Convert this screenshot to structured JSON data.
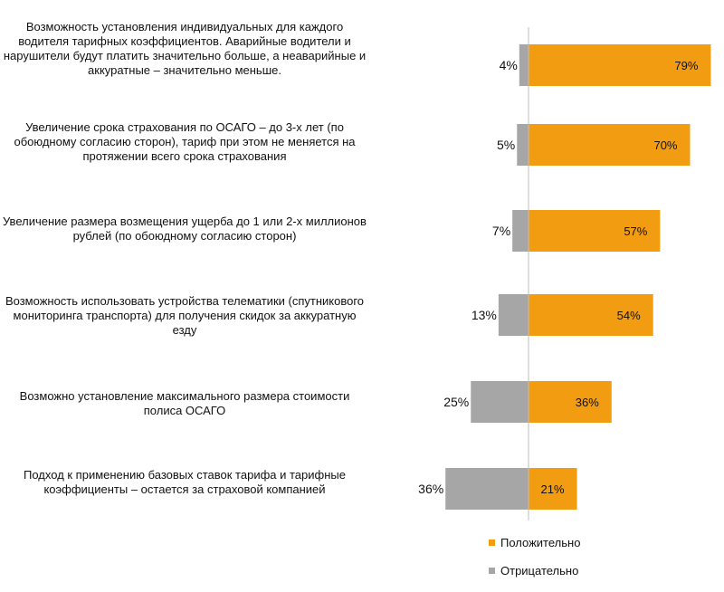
{
  "chart_data": {
    "type": "bar",
    "title": "",
    "xlabel": "",
    "ylabel": "",
    "categories": [
      "Возможность установления индивидуальных для каждого водителя тарифных коэффициентов. Аварийные водители и нарушители будут платить значительно больше, а неаварийные и аккуратные – значительно меньше.",
      "Увеличение срока страхования по ОСАГО – до 3-х лет (по обоюдному согласию сторон), тариф при этом не меняется на протяжении всего срока страхования",
      "Увеличение размера возмещения ущерба до 1 или 2-х миллионов рублей (по обоюдному согласию сторон)",
      "Возможность использовать устройства телематики (спутникового мониторинга транспорта) для получения скидок за аккуратную езду",
      "Возможно установление максимального размера стоимости полиса ОСАГО",
      "Подход к применению базовых ставок тарифа и тарифные коэффициенты – остается за страховой компанией"
    ],
    "series": [
      {
        "name": "Положительно",
        "values": [
          79,
          70,
          57,
          54,
          36,
          21
        ]
      },
      {
        "name": "Отрицательно",
        "values": [
          4,
          5,
          7,
          13,
          25,
          36
        ]
      }
    ],
    "value_labels": {
      "positive": [
        "79%",
        "70%",
        "57%",
        "54%",
        "36%",
        "21%"
      ],
      "negative": [
        "4%",
        "5%",
        "7%",
        "13%",
        "25%",
        "36%"
      ]
    },
    "colors": {
      "positive": "#f29c12",
      "negative": "#a6a6a6"
    },
    "legend_position": "bottom-right",
    "grid": false
  }
}
